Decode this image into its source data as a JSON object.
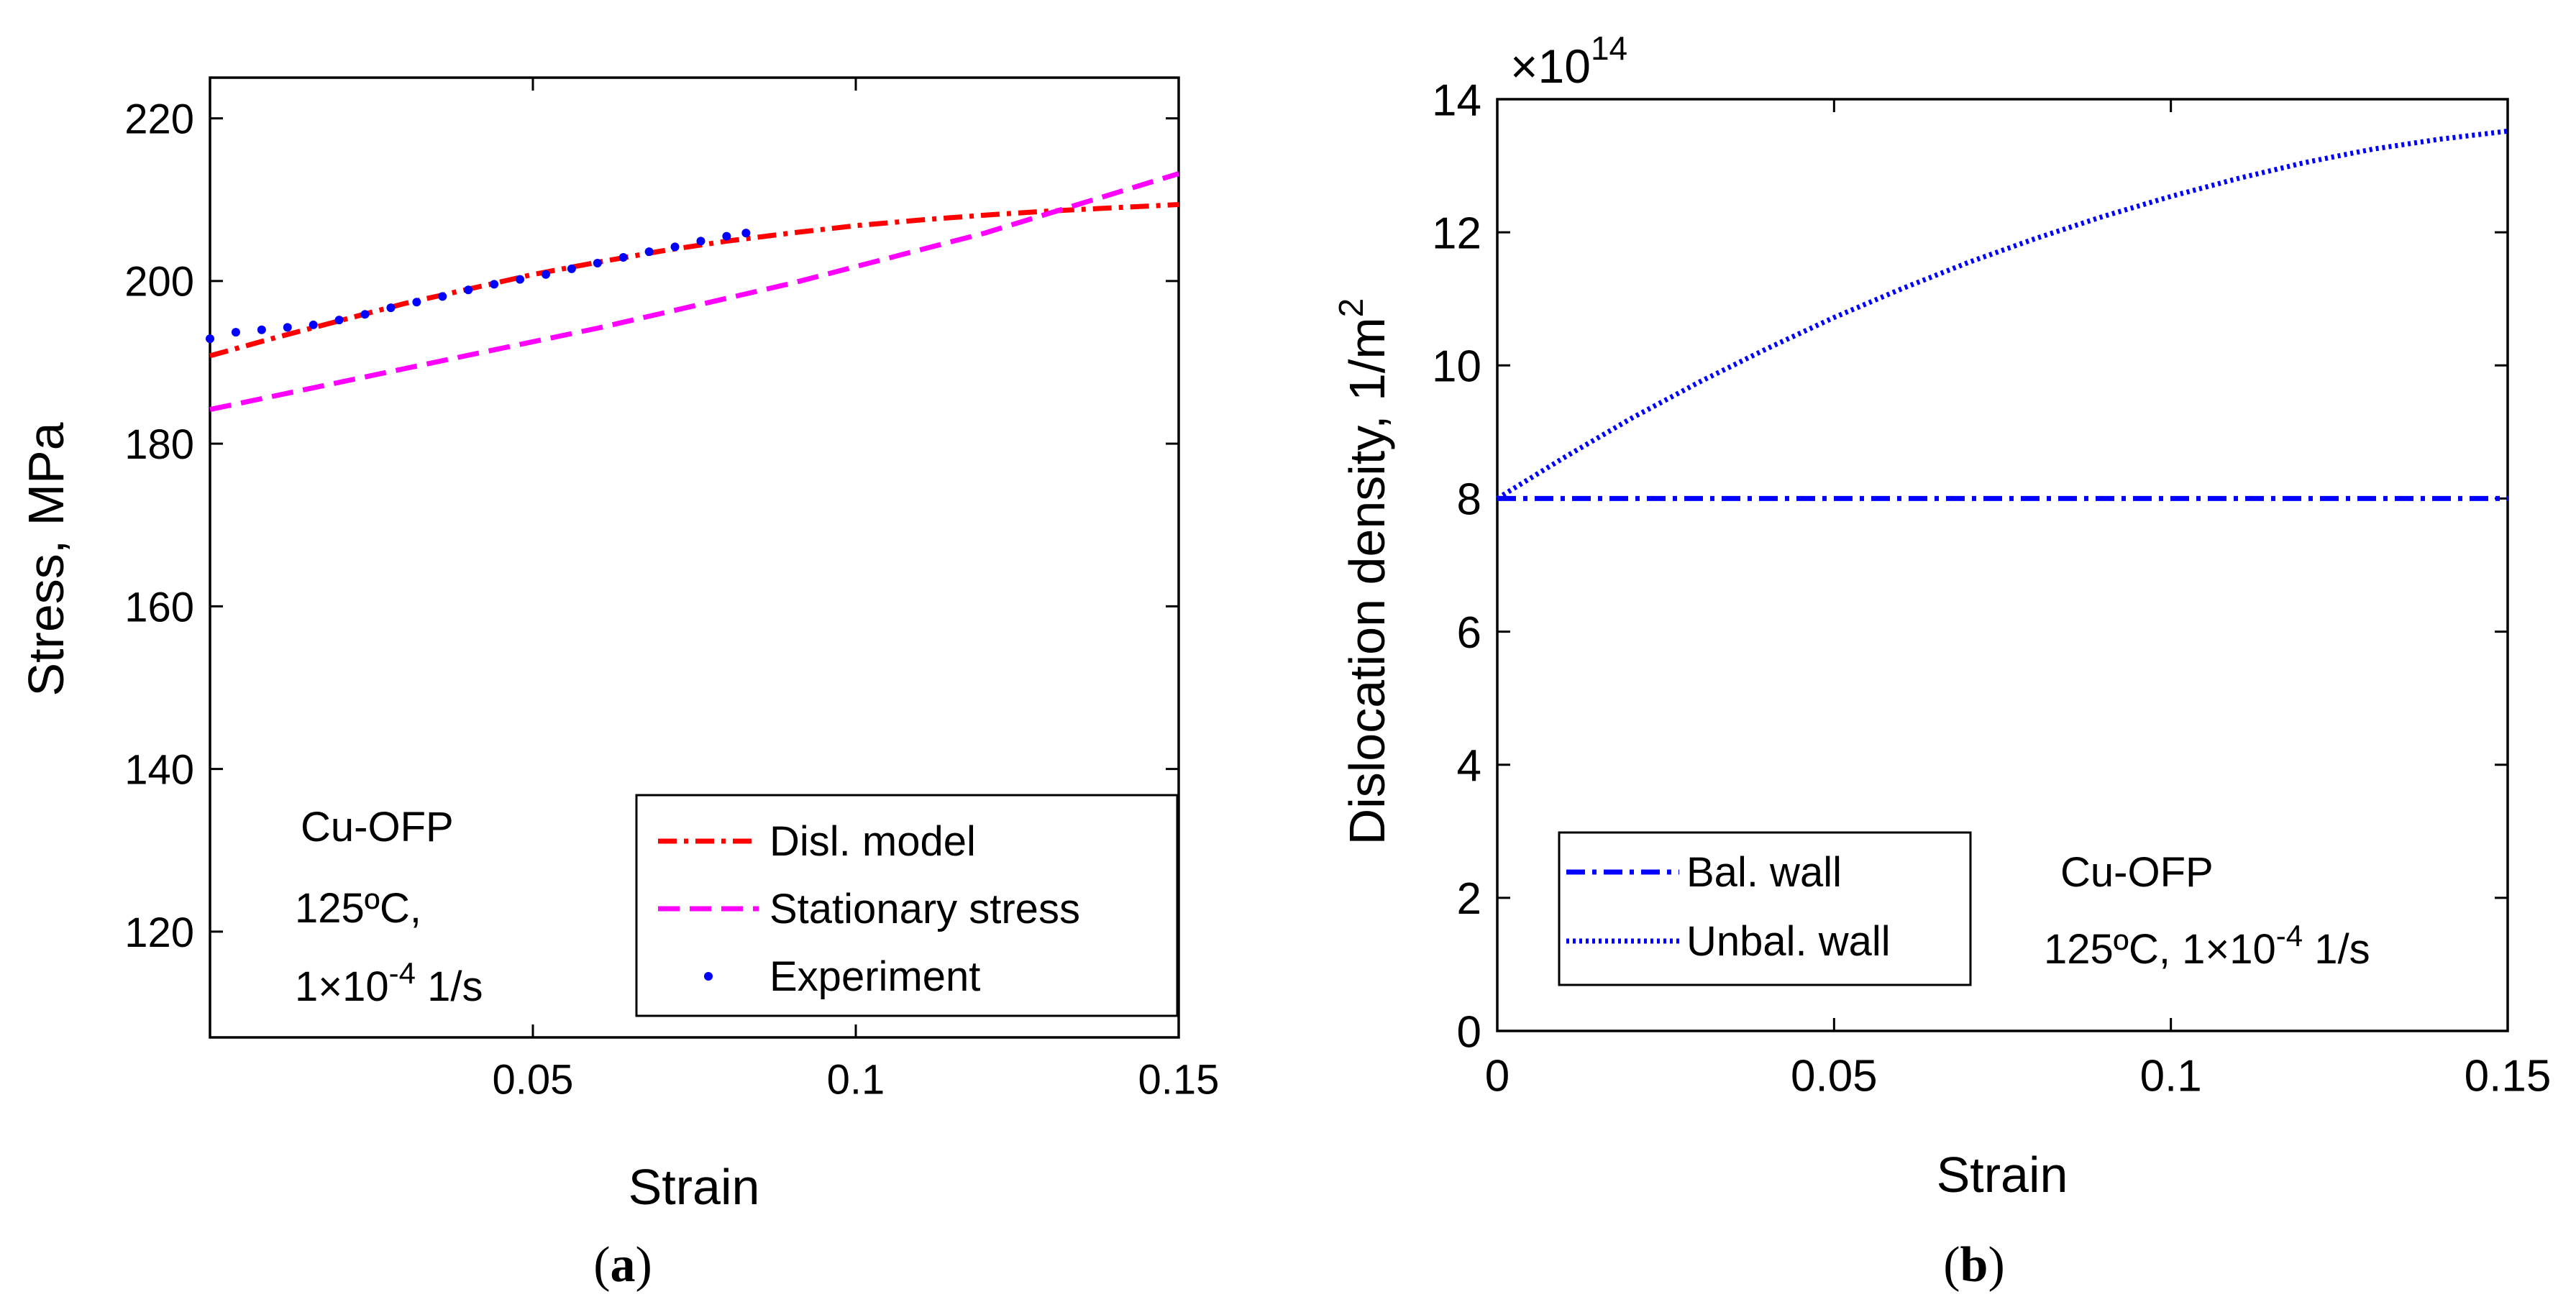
{
  "chart_data": [
    {
      "id": "a",
      "type": "line",
      "panel_label": "a",
      "xlabel": "Strain",
      "ylabel": "Stress, MPa",
      "xlim": [
        0.0,
        0.15
      ],
      "ylim": [
        107.0,
        225.0
      ],
      "xticks": [
        0.05,
        0.1,
        0.15
      ],
      "xtick_labels": [
        "0.05",
        "0.1",
        "0.15"
      ],
      "yticks": [
        120,
        140,
        160,
        180,
        200,
        220
      ],
      "ytick_labels": [
        "120",
        "140",
        "160",
        "180",
        "200",
        "220"
      ],
      "annotations": {
        "material": "Cu-OFP",
        "temp": "125ºC,",
        "rate_base": "1×10",
        "rate_exp": "-4",
        "rate_unit": " 1/s"
      },
      "legend_position": "bottom-right",
      "series": [
        {
          "name": "Disl. model",
          "style": "dashdot",
          "color": "#ff0000",
          "x": [
            0.0,
            0.01,
            0.02,
            0.03,
            0.04,
            0.05,
            0.06,
            0.07,
            0.08,
            0.09,
            0.1,
            0.11,
            0.12,
            0.13,
            0.14,
            0.15
          ],
          "y": [
            190.8,
            193.0,
            195.1,
            197.2,
            199.0,
            200.8,
            202.3,
            203.7,
            204.9,
            205.9,
            206.8,
            207.5,
            208.1,
            208.6,
            209.0,
            209.4
          ]
        },
        {
          "name": "Stationary stress",
          "style": "dashed",
          "color": "#ff00ff",
          "x": [
            0.0,
            0.03,
            0.06,
            0.09,
            0.12,
            0.15
          ],
          "y": [
            184.2,
            189.2,
            194.2,
            199.7,
            205.9,
            213.2
          ]
        },
        {
          "name": "Experiment",
          "style": "points",
          "color": "#0000ff",
          "x": [
            0.0,
            0.004,
            0.008,
            0.012,
            0.016,
            0.02,
            0.024,
            0.028,
            0.032,
            0.036,
            0.04,
            0.044,
            0.048,
            0.052,
            0.056,
            0.06,
            0.064,
            0.068,
            0.072,
            0.076,
            0.08,
            0.083
          ],
          "y": [
            192.9,
            193.7,
            194.0,
            194.3,
            194.6,
            195.2,
            195.9,
            196.7,
            197.4,
            198.1,
            198.9,
            199.6,
            200.2,
            200.8,
            201.5,
            202.2,
            202.9,
            203.6,
            204.2,
            204.9,
            205.5,
            205.9
          ]
        }
      ]
    },
    {
      "id": "b",
      "type": "line",
      "panel_label": "b",
      "xlabel": "Strain",
      "ylabel_main": "Dislocation density, 1/m",
      "ylabel_sup": "2",
      "y_multiplier_base": "×10",
      "y_multiplier_exp": "14",
      "xlim": [
        0.0,
        0.15
      ],
      "ylim": [
        0.0,
        14.0
      ],
      "xticks": [
        0,
        0.05,
        0.1,
        0.15
      ],
      "xtick_labels": [
        "0",
        "0.05",
        "0.1",
        "0.15"
      ],
      "yticks": [
        0,
        2,
        4,
        6,
        8,
        10,
        12,
        14
      ],
      "ytick_labels": [
        "0",
        "2",
        "4",
        "6",
        "8",
        "10",
        "12",
        "14"
      ],
      "annotations": {
        "material": "Cu-OFP",
        "cond_base": "125ºC, 1×10",
        "cond_exp": "-4",
        "cond_unit": " 1/s"
      },
      "legend_position": "bottom-left",
      "series": [
        {
          "name": "Bal. wall",
          "style": "dashdot",
          "color": "#0000ff",
          "x": [
            0.0,
            0.15
          ],
          "y": [
            8.0,
            8.0
          ]
        },
        {
          "name": "Unbal. wall",
          "style": "dotted",
          "color": "#0000ff",
          "x": [
            0.0,
            0.01,
            0.02,
            0.03,
            0.04,
            0.05,
            0.06,
            0.07,
            0.08,
            0.09,
            0.1,
            0.11,
            0.12,
            0.13,
            0.14,
            0.15
          ],
          "y": [
            8.0,
            8.62,
            9.21,
            9.75,
            10.25,
            10.72,
            11.15,
            11.55,
            11.91,
            12.24,
            12.54,
            12.81,
            13.05,
            13.25,
            13.4,
            13.52
          ]
        }
      ]
    }
  ]
}
